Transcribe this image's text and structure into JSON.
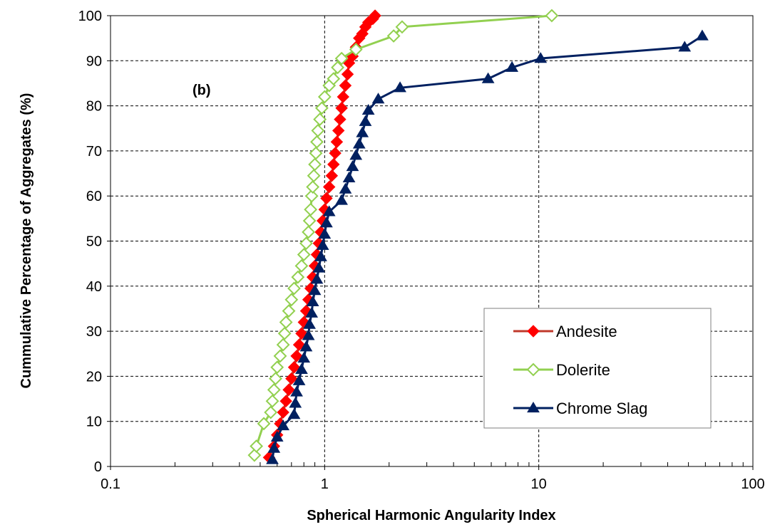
{
  "chart_data": {
    "type": "line",
    "xlabel": "Spherical Harmonic Angularity Index",
    "ylabel": "Cummulative Percentage of Aggregates (%)",
    "annotation": "(b)",
    "x_scale": "log",
    "xlim": [
      0.1,
      100
    ],
    "ylim": [
      0,
      100
    ],
    "x_ticks": [
      0.1,
      1,
      10,
      100
    ],
    "x_tick_labels": [
      "0.1",
      "1",
      "10",
      "100"
    ],
    "y_ticks": [
      0,
      10,
      20,
      30,
      40,
      50,
      60,
      70,
      80,
      90,
      100
    ],
    "y_tick_labels": [
      "0",
      "10",
      "20",
      "30",
      "40",
      "50",
      "60",
      "70",
      "80",
      "90",
      "100"
    ],
    "grid": true,
    "legend_position": "bottom-right",
    "series": [
      {
        "name": "Andesite",
        "color": "#ff0000",
        "line_color": "#c0392b",
        "marker": "diamond-filled",
        "x": [
          0.55,
          0.58,
          0.6,
          0.62,
          0.64,
          0.66,
          0.68,
          0.7,
          0.72,
          0.74,
          0.76,
          0.78,
          0.8,
          0.82,
          0.84,
          0.86,
          0.88,
          0.9,
          0.92,
          0.94,
          0.96,
          0.98,
          1.0,
          1.02,
          1.05,
          1.08,
          1.1,
          1.12,
          1.14,
          1.16,
          1.18,
          1.2,
          1.22,
          1.25,
          1.28,
          1.3,
          1.35,
          1.4,
          1.45,
          1.5,
          1.55,
          1.6,
          1.68,
          1.72
        ],
        "y": [
          2,
          4.5,
          7,
          9.5,
          12,
          14.5,
          17,
          19.5,
          22,
          24.5,
          27,
          29.5,
          32,
          34.5,
          37,
          39.5,
          42,
          44.5,
          47,
          49.5,
          52,
          54.5,
          57,
          59.5,
          62,
          64.5,
          67,
          69.5,
          72,
          74.5,
          77,
          79.5,
          82,
          84.5,
          87,
          89.5,
          91,
          93,
          95,
          96,
          97.5,
          98.5,
          99.3,
          100
        ]
      },
      {
        "name": "Dolerite",
        "color": "#92d050",
        "line_color": "#92d050",
        "marker": "diamond-open",
        "x": [
          0.47,
          0.48,
          0.52,
          0.56,
          0.57,
          0.58,
          0.59,
          0.6,
          0.62,
          0.64,
          0.65,
          0.66,
          0.68,
          0.7,
          0.72,
          0.75,
          0.78,
          0.8,
          0.82,
          0.84,
          0.85,
          0.86,
          0.87,
          0.88,
          0.89,
          0.9,
          0.91,
          0.92,
          0.93,
          0.95,
          0.97,
          1.0,
          1.05,
          1.1,
          1.15,
          1.2,
          1.4,
          2.1,
          2.3,
          11.5
        ],
        "y": [
          2.5,
          4.5,
          9.5,
          12,
          14.5,
          17,
          19.5,
          22,
          24.5,
          27,
          29.5,
          32,
          34.5,
          37,
          39.5,
          42,
          44.5,
          47,
          49.5,
          52,
          54.5,
          57,
          60,
          62,
          64.5,
          67,
          69.5,
          72,
          74.5,
          77,
          79.5,
          82,
          84.5,
          86,
          88.5,
          90.5,
          92.5,
          95.5,
          97.5,
          100
        ]
      },
      {
        "name": "Chrome Slag",
        "color": "#002060",
        "line_color": "#002060",
        "marker": "triangle-filled",
        "x": [
          0.57,
          0.58,
          0.6,
          0.64,
          0.72,
          0.73,
          0.74,
          0.76,
          0.78,
          0.8,
          0.82,
          0.84,
          0.85,
          0.87,
          0.88,
          0.9,
          0.92,
          0.94,
          0.96,
          0.98,
          1.0,
          1.02,
          1.05,
          1.2,
          1.25,
          1.3,
          1.35,
          1.4,
          1.45,
          1.5,
          1.55,
          1.6,
          1.78,
          2.25,
          5.8,
          7.5,
          10.2,
          48,
          58
        ],
        "y": [
          1.5,
          4,
          6.5,
          9,
          11.5,
          14,
          16.5,
          19,
          21.5,
          24,
          26.5,
          29,
          31.5,
          34,
          36.5,
          39,
          41.5,
          44,
          46.5,
          49,
          51.5,
          54,
          56.5,
          59,
          61.5,
          64,
          66.5,
          69,
          71.5,
          74,
          76.5,
          79,
          81.5,
          84,
          86,
          88.5,
          90.5,
          93,
          95.5
        ]
      }
    ]
  }
}
